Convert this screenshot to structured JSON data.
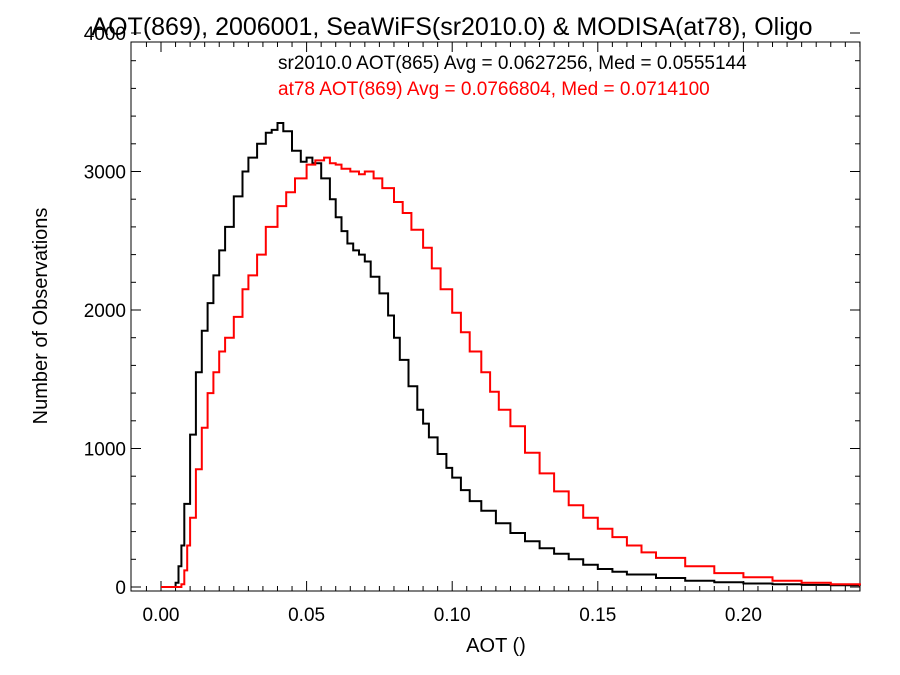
{
  "chart_data": {
    "type": "line",
    "title": "AOT(869), 2006001, SeaWiFS(sr2010.0) & MODISA(at78), Oligo",
    "xlabel": "AOT ()",
    "ylabel": "Number of Observations",
    "xlim": [
      -0.01,
      0.24
    ],
    "ylim": [
      0,
      4000
    ],
    "x_ticks": [
      0.0,
      0.05,
      0.1,
      0.15,
      0.2
    ],
    "x_tick_labels": [
      "0.00",
      "0.05",
      "0.10",
      "0.15",
      "0.20"
    ],
    "y_ticks": [
      0,
      1000,
      2000,
      3000,
      4000
    ],
    "y_tick_labels": [
      "0",
      "1000",
      "2000",
      "3000",
      "4000"
    ],
    "grid": false,
    "legend_position": "top-right",
    "annotations": [
      {
        "text": "sr2010.0 AOT(865) Avg = 0.0627256, Med = 0.0555144",
        "color": "#000000"
      },
      {
        "text": "at78 AOT(869) Avg = 0.0766804, Med = 0.0714100",
        "color": "#ff0000"
      }
    ],
    "series": [
      {
        "color": "#000000",
        "style": "step",
        "x": [
          0.0,
          0.004,
          0.005,
          0.006,
          0.007,
          0.008,
          0.01,
          0.012,
          0.014,
          0.016,
          0.018,
          0.02,
          0.022,
          0.025,
          0.028,
          0.03,
          0.033,
          0.036,
          0.038,
          0.04,
          0.042,
          0.045,
          0.048,
          0.05,
          0.052,
          0.055,
          0.058,
          0.06,
          0.062,
          0.064,
          0.066,
          0.068,
          0.07,
          0.072,
          0.075,
          0.078,
          0.08,
          0.082,
          0.085,
          0.088,
          0.09,
          0.092,
          0.095,
          0.098,
          0.1,
          0.103,
          0.106,
          0.11,
          0.115,
          0.12,
          0.125,
          0.13,
          0.135,
          0.14,
          0.145,
          0.15,
          0.155,
          0.16,
          0.17,
          0.18,
          0.19,
          0.2,
          0.21,
          0.22,
          0.23,
          0.24
        ],
        "values": [
          0,
          0,
          30,
          150,
          300,
          600,
          1100,
          1550,
          1850,
          2050,
          2250,
          2430,
          2600,
          2820,
          3000,
          3100,
          3200,
          3280,
          3300,
          3350,
          3290,
          3150,
          3070,
          3100,
          3060,
          2950,
          2800,
          2670,
          2570,
          2480,
          2430,
          2400,
          2350,
          2240,
          2120,
          1960,
          1800,
          1640,
          1450,
          1280,
          1180,
          1080,
          960,
          860,
          790,
          700,
          620,
          550,
          460,
          390,
          330,
          280,
          240,
          200,
          160,
          130,
          110,
          90,
          65,
          45,
          35,
          25,
          20,
          15,
          12,
          10
        ]
      },
      {
        "color": "#ff0000",
        "style": "step",
        "x": [
          0.0,
          0.006,
          0.007,
          0.008,
          0.009,
          0.01,
          0.012,
          0.014,
          0.016,
          0.018,
          0.02,
          0.022,
          0.025,
          0.028,
          0.03,
          0.033,
          0.036,
          0.04,
          0.043,
          0.046,
          0.05,
          0.053,
          0.056,
          0.058,
          0.06,
          0.062,
          0.065,
          0.068,
          0.07,
          0.073,
          0.076,
          0.08,
          0.083,
          0.086,
          0.09,
          0.093,
          0.096,
          0.1,
          0.103,
          0.106,
          0.11,
          0.113,
          0.116,
          0.12,
          0.125,
          0.13,
          0.135,
          0.14,
          0.145,
          0.15,
          0.155,
          0.16,
          0.165,
          0.17,
          0.18,
          0.19,
          0.2,
          0.21,
          0.22,
          0.23,
          0.24
        ],
        "values": [
          0,
          0,
          20,
          120,
          300,
          500,
          850,
          1150,
          1400,
          1550,
          1700,
          1800,
          1950,
          2150,
          2250,
          2400,
          2600,
          2750,
          2850,
          2950,
          3050,
          3080,
          3100,
          3060,
          3050,
          3020,
          3000,
          2980,
          3000,
          2950,
          2880,
          2780,
          2700,
          2580,
          2450,
          2300,
          2150,
          1980,
          1840,
          1700,
          1550,
          1410,
          1280,
          1160,
          970,
          820,
          690,
          590,
          500,
          420,
          360,
          300,
          250,
          210,
          150,
          100,
          70,
          45,
          30,
          20,
          12
        ]
      }
    ]
  }
}
